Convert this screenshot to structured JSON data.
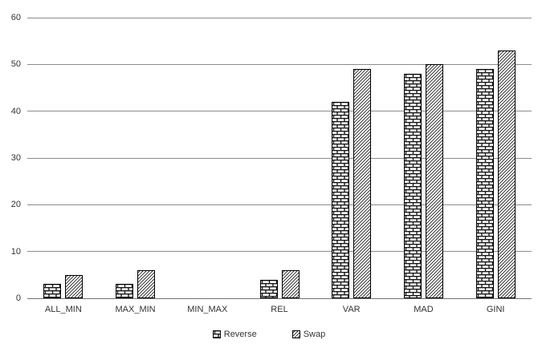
{
  "chart_data": {
    "type": "bar",
    "title": "",
    "xlabel": "",
    "ylabel": "",
    "categories": [
      "ALL_MIN",
      "MAX_MIN",
      "MIN_MAX",
      "REL",
      "VAR",
      "MAD",
      "GINI"
    ],
    "series": [
      {
        "name": "Reverse",
        "texture": "brick",
        "swatch_icon": "brick-pattern-swatch",
        "values": [
          3,
          3,
          0,
          4,
          42,
          48,
          49
        ]
      },
      {
        "name": "Swap",
        "texture": "diagonal",
        "swatch_icon": "diagonal-pattern-swatch",
        "values": [
          5,
          6,
          0,
          6,
          49,
          50,
          53
        ]
      }
    ],
    "ylim": [
      0,
      60
    ],
    "yticks": [
      0,
      10,
      20,
      30,
      40,
      50,
      60
    ],
    "grid": true,
    "legend_position": "bottom"
  },
  "colors": {
    "background": "#ffffff",
    "gridline": "#8c8c8c",
    "axis_line": "#737373",
    "tick_text": "#333333",
    "bar_outline": "#000000",
    "pattern_ink": "#1a1a1a",
    "bar_fill": "#ffffff"
  }
}
